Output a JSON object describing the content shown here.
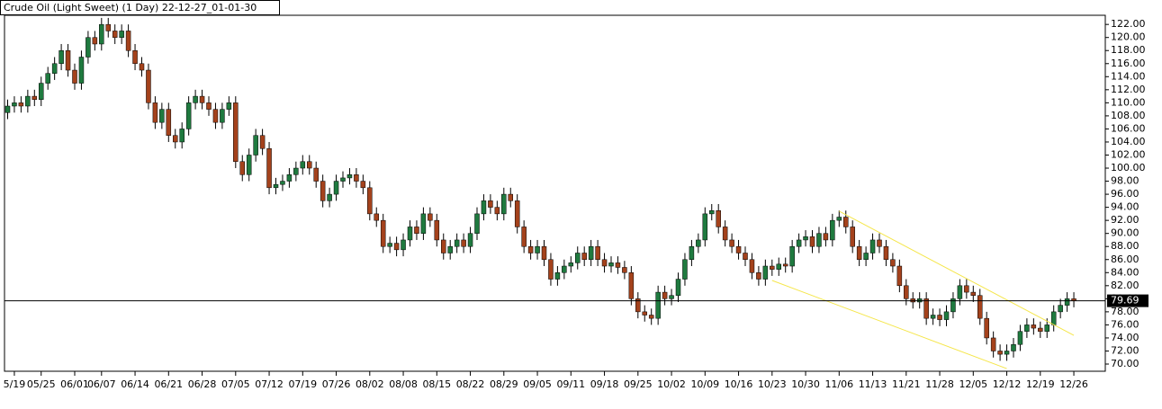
{
  "chart_data": {
    "type": "candlestick",
    "title": "Crude Oil (Light Sweet) (1 Day) 22-12-27_01-01-30",
    "open": [
      108.5,
      109.5,
      110,
      109.5,
      111,
      110.5,
      113,
      114.5,
      116,
      118,
      115,
      113,
      117,
      120,
      119,
      122,
      121,
      120,
      121,
      118,
      116,
      115,
      110,
      107,
      109,
      105,
      104,
      106,
      110,
      111,
      110,
      109,
      107,
      109,
      110,
      101,
      99,
      102,
      105,
      103,
      97,
      97.5,
      98,
      99,
      100,
      101,
      100,
      98,
      95,
      96,
      98,
      98.5,
      99,
      98,
      97,
      93,
      92,
      88,
      88.5,
      87.5,
      89,
      91,
      90,
      93,
      92,
      89,
      87,
      88,
      89,
      88,
      90,
      93,
      95,
      94,
      93,
      96,
      95,
      91,
      88,
      87,
      88,
      86,
      83,
      84,
      85,
      85.5,
      87,
      86,
      88,
      86,
      85,
      85.5,
      84.8,
      84,
      80,
      78,
      77.5,
      77,
      81,
      80,
      80.5,
      83,
      86,
      88,
      89,
      93,
      93.5,
      91,
      89,
      88,
      87,
      86,
      84,
      83,
      85,
      84.5,
      85.3,
      85,
      88,
      89,
      89.5,
      88,
      90,
      89,
      92,
      92.5,
      91,
      88,
      86,
      87,
      89,
      88,
      86,
      85,
      82,
      80,
      79.5,
      80,
      77,
      77.5,
      76.8,
      78,
      80,
      82,
      81,
      80.5,
      77,
      74,
      72,
      71.5,
      72,
      73,
      75,
      76,
      75.5,
      75,
      76,
      78,
      79,
      80
    ],
    "high": [
      110.5,
      111,
      111,
      112,
      112,
      114,
      115.5,
      117,
      119,
      119,
      116,
      118,
      121,
      121,
      123,
      123,
      122,
      122,
      122,
      119,
      117,
      116,
      111,
      110,
      110,
      106,
      107,
      111,
      112,
      112,
      111,
      110,
      110,
      111,
      111,
      102,
      103,
      106,
      106,
      104,
      98.5,
      99,
      100,
      101,
      102,
      102,
      101,
      99,
      97,
      99,
      99.5,
      100,
      100,
      99,
      98,
      94,
      93,
      89.5,
      89.5,
      90,
      92,
      92,
      94,
      94,
      93,
      90,
      89,
      90,
      90,
      91,
      94,
      96,
      96,
      95,
      97,
      97,
      96,
      92,
      89,
      89,
      89,
      87,
      85,
      86,
      86.5,
      88,
      88,
      89,
      89,
      87,
      86.5,
      86.5,
      85.8,
      85,
      81,
      79,
      78.5,
      82,
      82,
      81.5,
      84,
      87,
      89,
      90,
      94,
      94.5,
      94.5,
      92,
      90,
      89,
      88,
      87,
      85,
      86,
      86,
      86.3,
      86.3,
      89,
      90,
      90.5,
      90.5,
      91,
      91,
      93,
      93.5,
      93.5,
      92,
      89,
      88,
      90,
      90,
      89,
      87,
      86,
      83,
      81,
      81,
      81,
      78.5,
      78.5,
      79,
      81,
      83,
      83,
      82,
      81.5,
      78,
      75,
      73,
      73,
      74,
      76,
      77,
      77,
      76.5,
      77,
      79,
      80,
      81,
      81
    ],
    "low": [
      107.5,
      108.5,
      108.5,
      108.5,
      109.5,
      109.5,
      112,
      113.5,
      115,
      114,
      112,
      112,
      116,
      118,
      118,
      120,
      119,
      119,
      117,
      115,
      114,
      109,
      106,
      106,
      104,
      103,
      103,
      105,
      109,
      109,
      108,
      106,
      106,
      108,
      100,
      98,
      98,
      101,
      102,
      96,
      96,
      96.5,
      97,
      98,
      99,
      99,
      97,
      94,
      94,
      95,
      97,
      97.5,
      97,
      96,
      92,
      91,
      87,
      87,
      86.5,
      86.5,
      88,
      89,
      89,
      91,
      88,
      86,
      86,
      87,
      87,
      87,
      89,
      92,
      93,
      92,
      92,
      94,
      90,
      87,
      86,
      86,
      85,
      82,
      82,
      83,
      84,
      84.5,
      85,
      85,
      85,
      84,
      84,
      83.8,
      83,
      79,
      77,
      76.5,
      76,
      76,
      79,
      79,
      79.5,
      82,
      85,
      87,
      88,
      92,
      90,
      88,
      87,
      86,
      85,
      83,
      82,
      82,
      83.5,
      83.5,
      84,
      84,
      87,
      88,
      87,
      87,
      88,
      88,
      91,
      90,
      87,
      85,
      85,
      86,
      87,
      85,
      84,
      81,
      79,
      78.5,
      78.5,
      76,
      76,
      75.8,
      75.8,
      77,
      79,
      80,
      79.5,
      76,
      73,
      71,
      70.5,
      70.5,
      71,
      72,
      74,
      74.5,
      74,
      74,
      75,
      77,
      78,
      78.69
    ],
    "close": [
      109.5,
      110,
      109.5,
      111,
      110.5,
      113,
      114.5,
      116,
      118,
      115,
      113,
      117,
      120,
      119,
      122,
      121,
      120,
      121,
      118,
      116,
      115,
      110,
      107,
      109,
      105,
      104,
      106,
      110,
      111,
      110,
      109,
      107,
      109,
      110,
      101,
      99,
      102,
      105,
      103,
      97,
      97.5,
      98,
      99,
      100,
      101,
      100,
      98,
      95,
      96,
      98,
      98.5,
      99,
      98,
      97,
      93,
      92,
      88,
      88.5,
      87.5,
      89,
      91,
      90,
      93,
      92,
      89,
      87,
      88,
      89,
      88,
      90,
      93,
      95,
      94,
      93,
      96,
      95,
      91,
      88,
      87,
      88,
      86,
      83,
      84,
      85,
      85.5,
      87,
      86,
      88,
      86,
      85,
      85.5,
      84.8,
      84,
      80,
      78,
      77.5,
      77,
      81,
      80,
      80.5,
      83,
      86,
      88,
      89,
      93,
      93.5,
      91,
      89,
      88,
      87,
      86,
      84,
      83,
      85,
      84.5,
      85.3,
      85,
      88,
      89,
      89.5,
      88,
      90,
      89,
      92,
      92.5,
      91,
      88,
      86,
      87,
      89,
      88,
      86,
      85,
      82,
      80,
      79.5,
      80,
      77,
      77.5,
      76.8,
      78,
      80,
      82,
      81,
      80.5,
      77,
      74,
      72,
      71.5,
      72,
      73,
      75,
      76,
      75.5,
      75,
      76,
      78,
      79,
      80,
      79.69
    ],
    "up_color": "#1f7a3f",
    "down_color": "#a4421c",
    "ylim": [
      68.9,
      123.4
    ],
    "yticks": [
      {
        "value": 70,
        "label": "70.00"
      },
      {
        "value": 72,
        "label": "72.00"
      },
      {
        "value": 74,
        "label": "74.00"
      },
      {
        "value": 76,
        "label": "76.00"
      },
      {
        "value": 78,
        "label": "78.00"
      },
      {
        "value": 80,
        "label": "80.00"
      },
      {
        "value": 82,
        "label": "82.00"
      },
      {
        "value": 84,
        "label": "84.00"
      },
      {
        "value": 86,
        "label": "86.00"
      },
      {
        "value": 88,
        "label": "88.00"
      },
      {
        "value": 90,
        "label": "90.00"
      },
      {
        "value": 92,
        "label": "92.00"
      },
      {
        "value": 94,
        "label": "94.00"
      },
      {
        "value": 96,
        "label": "96.00"
      },
      {
        "value": 98,
        "label": "98.00"
      },
      {
        "value": 100,
        "label": "100.00"
      },
      {
        "value": 102,
        "label": "102.00"
      },
      {
        "value": 104,
        "label": "104.00"
      },
      {
        "value": 106,
        "label": "106.00"
      },
      {
        "value": 108,
        "label": "108.00"
      },
      {
        "value": 110,
        "label": "110.00"
      },
      {
        "value": 112,
        "label": "112.00"
      },
      {
        "value": 114,
        "label": "114.00"
      },
      {
        "value": 116,
        "label": "116.00"
      },
      {
        "value": 118,
        "label": "118.00"
      },
      {
        "value": 120,
        "label": "120.00"
      },
      {
        "value": 122,
        "label": "122.00"
      }
    ],
    "xticks": [
      {
        "value": 1,
        "label": "5/19"
      },
      {
        "value": 5,
        "label": "05/25"
      },
      {
        "value": 10,
        "label": "06/01"
      },
      {
        "value": 14,
        "label": "06/07"
      },
      {
        "value": 19,
        "label": "06/14"
      },
      {
        "value": 24,
        "label": "06/21"
      },
      {
        "value": 29,
        "label": "06/28"
      },
      {
        "value": 34,
        "label": "07/05"
      },
      {
        "value": 39,
        "label": "07/12"
      },
      {
        "value": 44,
        "label": "07/19"
      },
      {
        "value": 49,
        "label": "07/26"
      },
      {
        "value": 54,
        "label": "08/02"
      },
      {
        "value": 59,
        "label": "08/08"
      },
      {
        "value": 64,
        "label": "08/15"
      },
      {
        "value": 69,
        "label": "08/22"
      },
      {
        "value": 74,
        "label": "08/29"
      },
      {
        "value": 79,
        "label": "09/05"
      },
      {
        "value": 84,
        "label": "09/11"
      },
      {
        "value": 89,
        "label": "09/18"
      },
      {
        "value": 94,
        "label": "09/25"
      },
      {
        "value": 99,
        "label": "10/02"
      },
      {
        "value": 104,
        "label": "10/09"
      },
      {
        "value": 109,
        "label": "10/16"
      },
      {
        "value": 114,
        "label": "10/23"
      },
      {
        "value": 119,
        "label": "10/30"
      },
      {
        "value": 124,
        "label": "11/06"
      },
      {
        "value": 129,
        "label": "11/13"
      },
      {
        "value": 134,
        "label": "11/21"
      },
      {
        "value": 139,
        "label": "11/28"
      },
      {
        "value": 144,
        "label": "12/05"
      },
      {
        "value": 149,
        "label": "12/12"
      },
      {
        "value": 154,
        "label": "12/19"
      },
      {
        "value": 159,
        "label": "12/26"
      }
    ],
    "last_price": 79.69,
    "trendline_color": "#f5e64a",
    "trendlines": [
      [
        [
          124,
          93.4
        ],
        [
          159,
          74.4
        ]
      ],
      [
        [
          114,
          82.8
        ],
        [
          149,
          69.3
        ]
      ]
    ]
  }
}
